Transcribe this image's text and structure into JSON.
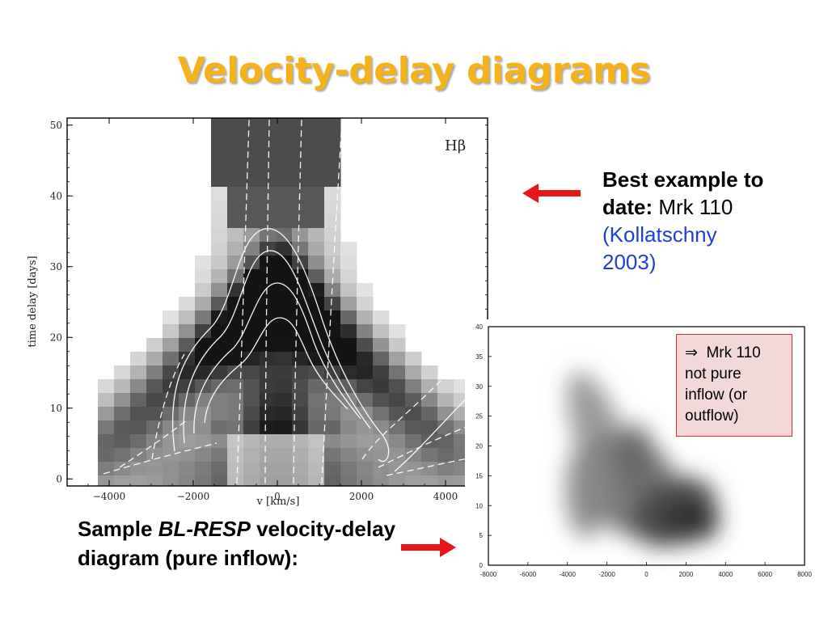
{
  "slide": {
    "title": "Velocity-delay diagrams",
    "best_bold_1": "Best example to",
    "best_bold_2": "date:",
    "best_object": "Mrk 110",
    "best_cite_1": "(Kollatschny",
    "best_cite_2": "2003)",
    "sample_pre": "Sample ",
    "sample_italic": "BL-RESP",
    "sample_post": " velocity-delay",
    "sample_line2": "diagram (pure inflow):",
    "note_symbol": "⇒",
    "note_line1": "Mrk 110",
    "note_line2": "not pure",
    "note_line3": "inflow (or",
    "note_line4": "outflow)",
    "colors": {
      "title": "#f5b21a",
      "arrow": "#e8151b",
      "citation": "#1f3fd4",
      "note_bg": "#f2d8d8",
      "note_border": "#d03030"
    }
  },
  "chart_data": [
    {
      "type": "heatmap",
      "title": "",
      "label": "Hβ",
      "xlabel": "v [km/s]",
      "ylabel": "time delay [days]",
      "xlim": [
        -5000,
        5000
      ],
      "ylim": [
        -1,
        51
      ],
      "x_ticks": [
        -4000,
        -2000,
        0,
        2000,
        4000
      ],
      "x_tick_labels": [
        "−4000",
        "−2000",
        "0",
        "2000",
        "4000"
      ],
      "y_ticks": [
        0,
        10,
        20,
        30,
        40,
        50
      ],
      "y_tick_labels": [
        "0",
        "10",
        "20",
        "30",
        "40",
        "50"
      ]
    },
    {
      "type": "heatmap",
      "title": "",
      "xlabel": "",
      "ylabel": "",
      "xlim": [
        -8000,
        8000
      ],
      "ylim": [
        0,
        40
      ],
      "x_ticks": [
        -8000,
        -6000,
        -4000,
        -2000,
        0,
        2000,
        4000,
        6000,
        8000
      ],
      "x_tick_labels": [
        "-8000",
        "-6000",
        "-4000",
        "-2000",
        "0",
        "2000",
        "4000",
        "6000",
        "8000"
      ],
      "y_ticks": [
        0,
        5,
        10,
        15,
        20,
        25,
        30,
        35,
        40
      ],
      "y_tick_labels": [
        "0",
        "5",
        "10",
        "15",
        "20",
        "25",
        "30",
        "35",
        "40"
      ]
    }
  ]
}
